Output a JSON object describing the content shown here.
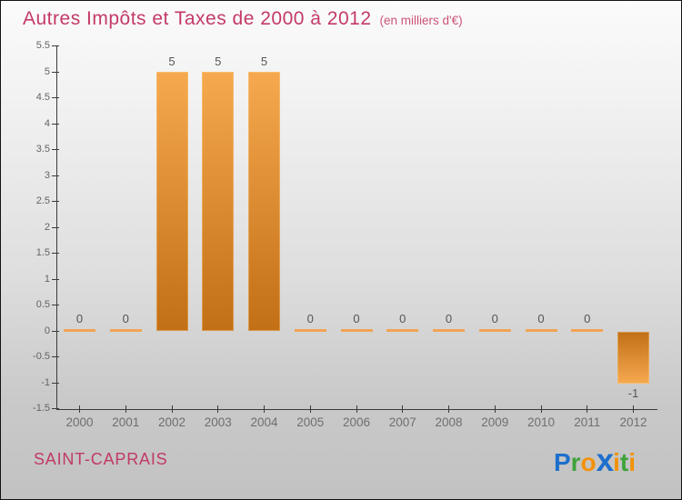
{
  "page": {
    "background_top": "#fbfbfb",
    "background_bottom": "#c2c2c2",
    "border_color": "#141414"
  },
  "header": {
    "title": "Autres Impôts et Taxes de 2000 à 2012",
    "subtitle": "(en milliers d'€)",
    "title_color": "#c43a66",
    "subtitle_color": "#cc5478"
  },
  "footer": {
    "location": "SAINT-CAPRAIS",
    "location_color": "#c13a64",
    "logo": {
      "name": "Proxiti",
      "letters": [
        {
          "ch": "P",
          "color": "#1d6fcc",
          "emphasis": false
        },
        {
          "ch": "r",
          "color": "#3fa33c",
          "emphasis": false
        },
        {
          "ch": "o",
          "color": "#f39208",
          "emphasis": false
        },
        {
          "ch": "x",
          "color": "#1d6fcc",
          "emphasis": true
        },
        {
          "ch": "i",
          "color": "#f39208",
          "emphasis": false
        },
        {
          "ch": "t",
          "color": "#3fa33c",
          "emphasis": false
        },
        {
          "ch": "i",
          "color": "#f39208",
          "emphasis": false
        }
      ]
    }
  },
  "chart_data": {
    "type": "bar",
    "title": "Autres Impôts et Taxes de 2000 à 2012",
    "subtitle": "(en milliers d'€)",
    "categories": [
      "2000",
      "2001",
      "2002",
      "2003",
      "2004",
      "2005",
      "2006",
      "2007",
      "2008",
      "2009",
      "2010",
      "2011",
      "2012"
    ],
    "values": [
      0,
      0,
      5,
      5,
      5,
      0,
      0,
      0,
      0,
      0,
      0,
      0,
      -1
    ],
    "bar_labels": [
      "0",
      "0",
      "5",
      "5",
      "5",
      "0",
      "0",
      "0",
      "0",
      "0",
      "0",
      "0",
      "-1"
    ],
    "xlabel": "",
    "ylabel": "",
    "ylim": [
      -1.5,
      5.5
    ],
    "ytick_step": 0.5,
    "ytick_labels": [
      "5.5",
      "5",
      "4.5",
      "4",
      "3.5",
      "3",
      "2.5",
      "2",
      "1.5",
      "1",
      "0.5",
      "0",
      "-0.5",
      "-1",
      "-1.5"
    ],
    "grid": false,
    "legend": null,
    "colors": {
      "bar_gradient_top": "#f6a94f",
      "bar_gradient_bottom": "#c26f16",
      "zero_bar": "#f2a355",
      "axis": "#3a3a3a",
      "ytick_label": "#636363",
      "category_label": "#6f6f6f",
      "value_label": "#555555"
    }
  }
}
